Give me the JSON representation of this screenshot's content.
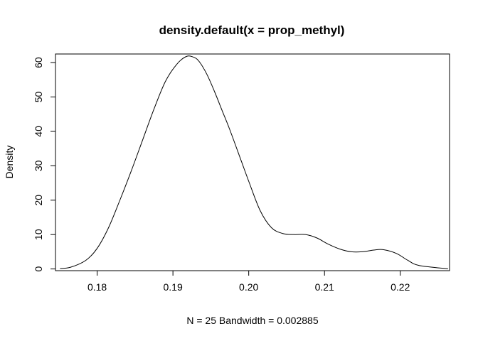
{
  "chart_data": {
    "type": "line",
    "title": "density.default(x = prop_methyl)",
    "xlabel": "N = 25   Bandwidth = 0.002885",
    "ylabel": "Density",
    "xlim": [
      0.1745,
      0.2265
    ],
    "ylim": [
      -0.5,
      62.5
    ],
    "xticks": [
      0.18,
      0.19,
      0.2,
      0.21,
      0.22
    ],
    "xtick_labels": [
      "0.18",
      "0.19",
      "0.20",
      "0.21",
      "0.22"
    ],
    "yticks": [
      0,
      10,
      20,
      30,
      40,
      50,
      60
    ],
    "ytick_labels": [
      "0",
      "10",
      "20",
      "30",
      "40",
      "50",
      "60"
    ],
    "grid": false,
    "legend": false,
    "series": [
      {
        "color": "#000000",
        "x": [
          0.1751,
          0.1765,
          0.1785,
          0.18,
          0.1815,
          0.183,
          0.1845,
          0.186,
          0.1875,
          0.189,
          0.1905,
          0.1918,
          0.1928,
          0.1935,
          0.1945,
          0.1955,
          0.1965,
          0.1975,
          0.199,
          0.2,
          0.2015,
          0.203,
          0.2045,
          0.206,
          0.2075,
          0.209,
          0.2105,
          0.212,
          0.2135,
          0.215,
          0.2165,
          0.2178,
          0.2195,
          0.221,
          0.2225,
          0.2263
        ],
        "y": [
          0.1,
          0.5,
          2.5,
          6.0,
          12.0,
          20.0,
          28.5,
          37.5,
          46.5,
          54.5,
          59.5,
          61.8,
          61.5,
          60.2,
          56.5,
          51.5,
          46.0,
          40.5,
          31.5,
          25.5,
          17.0,
          12.0,
          10.3,
          10.0,
          10.0,
          9.0,
          7.2,
          5.8,
          5.0,
          5.0,
          5.5,
          5.6,
          4.5,
          2.5,
          1.0,
          0.05
        ]
      }
    ]
  }
}
